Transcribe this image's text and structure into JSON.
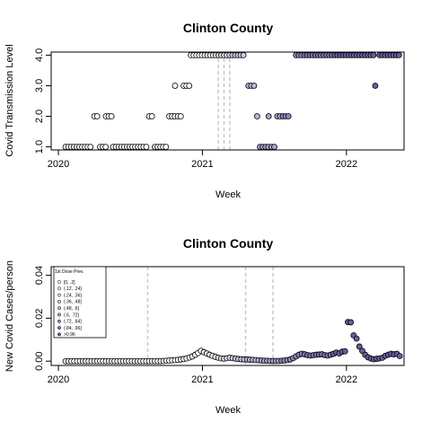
{
  "chart_data": [
    {
      "type": "scatter",
      "title": "Clinton County",
      "xlabel": "Week",
      "ylabel": "Covid Transmission Level",
      "xlim": [
        2019.95,
        2022.4
      ],
      "ylim": [
        0.9,
        4.1
      ],
      "x_ticks": [
        2020,
        2021,
        2022
      ],
      "x_tick_labels": [
        "2020",
        "2021",
        "2022"
      ],
      "y_ticks": [
        1,
        2,
        3,
        4
      ],
      "y_tick_labels": [
        "1.0",
        "2.0",
        "3.0",
        "4.0"
      ],
      "vlines": [
        2021.11,
        2021.15,
        2021.19
      ],
      "grid": false,
      "segments": [
        {
          "from": 2020.05,
          "to": 2020.23,
          "value": 1
        },
        {
          "from": 2020.25,
          "to": 2020.28,
          "value": 2
        },
        {
          "from": 2020.29,
          "to": 2020.33,
          "value": 1
        },
        {
          "from": 2020.33,
          "to": 2020.38,
          "value": 2
        },
        {
          "from": 2020.38,
          "to": 2020.62,
          "value": 1
        },
        {
          "from": 2020.63,
          "to": 2020.66,
          "value": 2
        },
        {
          "from": 2020.67,
          "to": 2020.76,
          "value": 1
        },
        {
          "from": 2020.77,
          "to": 2020.81,
          "value": 2
        },
        {
          "from": 2020.81,
          "to": 2020.81,
          "value": 3
        },
        {
          "from": 2020.83,
          "to": 2020.86,
          "value": 2
        },
        {
          "from": 2020.87,
          "to": 2020.92,
          "value": 3
        },
        {
          "from": 2020.92,
          "to": 2021.3,
          "value": 4
        },
        {
          "from": 2021.32,
          "to": 2021.36,
          "value": 3
        },
        {
          "from": 2021.38,
          "to": 2021.38,
          "value": 2
        },
        {
          "from": 2021.4,
          "to": 2021.46,
          "value": 1
        },
        {
          "from": 2021.46,
          "to": 2021.46,
          "value": 2
        },
        {
          "from": 2021.48,
          "to": 2021.5,
          "value": 1
        },
        {
          "from": 2021.52,
          "to": 2021.6,
          "value": 2
        },
        {
          "from": 2021.65,
          "to": 2022.19,
          "value": 4
        },
        {
          "from": 2022.2,
          "to": 2022.2,
          "value": 3
        },
        {
          "from": 2022.23,
          "to": 2022.37,
          "value": 4
        }
      ]
    },
    {
      "type": "scatter",
      "title": "Clinton County",
      "xlabel": "Week",
      "ylabel": "New Covid Cases/person",
      "xlim": [
        2019.95,
        2022.4
      ],
      "ylim": [
        -0.002,
        0.044
      ],
      "x_ticks": [
        2020,
        2021,
        2022
      ],
      "x_tick_labels": [
        "2020",
        "2021",
        "2022"
      ],
      "y_ticks": [
        0,
        0.02,
        0.04
      ],
      "y_tick_labels": [
        "0.00",
        "0.02",
        "0.04"
      ],
      "vlines": [
        2020.62,
        2021.3,
        2021.49
      ],
      "grid": false,
      "legend": {
        "title": "1st Dose Prev.",
        "position": "top-left",
        "entries": [
          "[0, .2]",
          "(.12, .24]",
          "(.24, .36]",
          "(.36, .48]",
          "(.48, .6]",
          "(.6, .72]",
          "(.72, .84]",
          "(.84, .96]",
          ">0.96"
        ]
      },
      "points": [
        [
          2020.05,
          0
        ],
        [
          2020.07,
          0
        ],
        [
          2020.09,
          0
        ],
        [
          2020.11,
          0
        ],
        [
          2020.13,
          0
        ],
        [
          2020.15,
          0
        ],
        [
          2020.17,
          0
        ],
        [
          2020.19,
          0
        ],
        [
          2020.21,
          0
        ],
        [
          2020.23,
          0
        ],
        [
          2020.25,
          0
        ],
        [
          2020.27,
          0
        ],
        [
          2020.29,
          0
        ],
        [
          2020.31,
          0
        ],
        [
          2020.33,
          0
        ],
        [
          2020.35,
          0
        ],
        [
          2020.37,
          0
        ],
        [
          2020.39,
          0
        ],
        [
          2020.41,
          0
        ],
        [
          2020.43,
          0
        ],
        [
          2020.45,
          0
        ],
        [
          2020.47,
          0
        ],
        [
          2020.49,
          0
        ],
        [
          2020.51,
          0
        ],
        [
          2020.53,
          0
        ],
        [
          2020.55,
          0
        ],
        [
          2020.57,
          0
        ],
        [
          2020.59,
          0
        ],
        [
          2020.61,
          0
        ],
        [
          2020.63,
          0
        ],
        [
          2020.65,
          0
        ],
        [
          2020.67,
          0
        ],
        [
          2020.69,
          0
        ],
        [
          2020.71,
          0
        ],
        [
          2020.73,
          0.0001
        ],
        [
          2020.75,
          0.0002
        ],
        [
          2020.77,
          0.0003
        ],
        [
          2020.79,
          0.0004
        ],
        [
          2020.81,
          0.0005
        ],
        [
          2020.83,
          0.0006
        ],
        [
          2020.85,
          0.0008
        ],
        [
          2020.87,
          0.001
        ],
        [
          2020.89,
          0.0013
        ],
        [
          2020.91,
          0.0017
        ],
        [
          2020.93,
          0.0022
        ],
        [
          2020.95,
          0.003
        ],
        [
          2020.97,
          0.0038
        ],
        [
          2020.99,
          0.0048
        ],
        [
          2021.01,
          0.0042
        ],
        [
          2021.03,
          0.0036
        ],
        [
          2021.05,
          0.003
        ],
        [
          2021.07,
          0.0025
        ],
        [
          2021.09,
          0.002
        ],
        [
          2021.11,
          0.0016
        ],
        [
          2021.13,
          0.0013
        ],
        [
          2021.15,
          0.0012
        ],
        [
          2021.17,
          0.0014
        ],
        [
          2021.19,
          0.0016
        ],
        [
          2021.21,
          0.0014
        ],
        [
          2021.23,
          0.0012
        ],
        [
          2021.25,
          0.001
        ],
        [
          2021.27,
          0.0009
        ],
        [
          2021.29,
          0.0008
        ],
        [
          2021.31,
          0.0008
        ],
        [
          2021.33,
          0.0007
        ],
        [
          2021.35,
          0.0006
        ],
        [
          2021.37,
          0.0005
        ],
        [
          2021.39,
          0.0004
        ],
        [
          2021.41,
          0.0003
        ],
        [
          2021.43,
          0.0002
        ],
        [
          2021.45,
          0.0002
        ],
        [
          2021.47,
          0.0001
        ],
        [
          2021.49,
          0.0001
        ],
        [
          2021.51,
          0.0001
        ],
        [
          2021.53,
          0.0001
        ],
        [
          2021.55,
          0.0002
        ],
        [
          2021.57,
          0.0003
        ],
        [
          2021.59,
          0.0005
        ],
        [
          2021.61,
          0.0008
        ],
        [
          2021.63,
          0.0014
        ],
        [
          2021.65,
          0.0022
        ],
        [
          2021.67,
          0.003
        ],
        [
          2021.69,
          0.0034
        ],
        [
          2021.71,
          0.0032
        ],
        [
          2021.73,
          0.0028
        ],
        [
          2021.75,
          0.0026
        ],
        [
          2021.77,
          0.0028
        ],
        [
          2021.79,
          0.003
        ],
        [
          2021.81,
          0.0031
        ],
        [
          2021.83,
          0.0032
        ],
        [
          2021.85,
          0.0028
        ],
        [
          2021.87,
          0.0026
        ],
        [
          2021.89,
          0.003
        ],
        [
          2021.91,
          0.0034
        ],
        [
          2021.93,
          0.004
        ],
        [
          2021.95,
          0.0036
        ],
        [
          2021.97,
          0.0044
        ],
        [
          2021.99,
          0.0046
        ],
        [
          2022.01,
          0.0182
        ],
        [
          2022.03,
          0.0181
        ],
        [
          2022.05,
          0.012
        ],
        [
          2022.07,
          0.0105
        ],
        [
          2022.09,
          0.0068
        ],
        [
          2022.11,
          0.0048
        ],
        [
          2022.13,
          0.003
        ],
        [
          2022.15,
          0.0018
        ],
        [
          2022.17,
          0.0012
        ],
        [
          2022.19,
          0.0009
        ],
        [
          2022.21,
          0.0011
        ],
        [
          2022.23,
          0.0013
        ],
        [
          2022.25,
          0.0016
        ],
        [
          2022.27,
          0.0025
        ],
        [
          2022.29,
          0.003
        ],
        [
          2022.31,
          0.0034
        ],
        [
          2022.33,
          0.0032
        ],
        [
          2022.35,
          0.0034
        ],
        [
          2022.37,
          0.0024
        ]
      ]
    }
  ],
  "colors": {
    "dose_scale": [
      "#ffffff",
      "#f0eff6",
      "#e0ddee",
      "#cfcae4",
      "#bdb6d9",
      "#aaa1cd",
      "#9387bd",
      "#7e72b0",
      "#6b5ea5"
    ],
    "stroke": "#000000",
    "vline": "#c8c8c8"
  }
}
